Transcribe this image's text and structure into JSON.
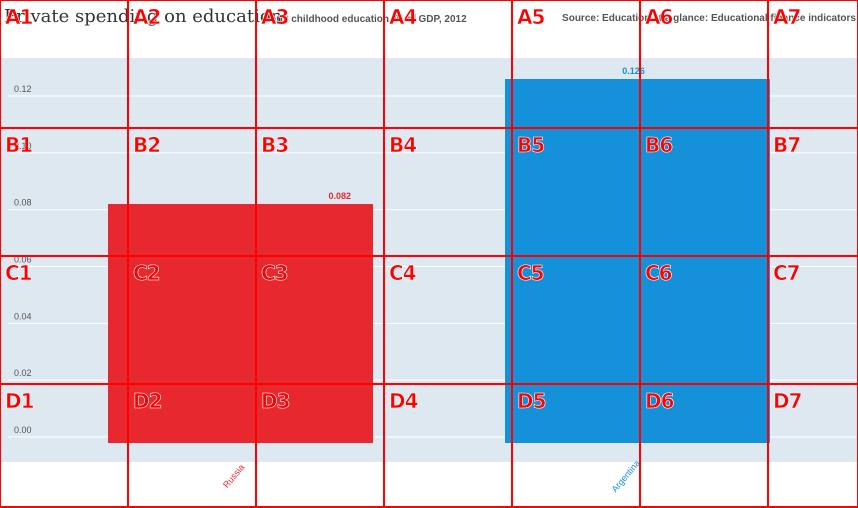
{
  "header": {
    "title": "Private spending on education",
    "subtitle": "Early childhood education, % of GDP, 2012",
    "source": "Source: Education at a glance: Educational finance indicators"
  },
  "chart_data": {
    "type": "bar",
    "categories": [
      "Russia",
      "Argentina"
    ],
    "values": [
      0.082,
      0.126
    ],
    "bar_colors": [
      "#e8282f",
      "#1591d9"
    ],
    "value_labels": [
      "0.082",
      "0.126"
    ],
    "yticks": [
      "0.00",
      "0.02",
      "0.04",
      "0.06",
      "0.08",
      "0.10",
      "0.12"
    ],
    "ylim": [
      0,
      0.126
    ],
    "grid": true,
    "title": "Private spending on education",
    "xlabel": "",
    "ylabel": ""
  },
  "overlay": {
    "labels": [
      "A1",
      "A2",
      "A3",
      "A4",
      "A5",
      "A6",
      "A7",
      "B1",
      "B2",
      "B3",
      "B4",
      "B5",
      "B6",
      "B7",
      "C1",
      "C2",
      "C3",
      "C4",
      "C5",
      "C6",
      "C7",
      "D1",
      "D2",
      "D3",
      "D4",
      "D5",
      "D6",
      "D7"
    ],
    "color": "#ff0000"
  },
  "colors": {
    "plot_background": "#dde8f0",
    "gridline": "#ffffff"
  }
}
